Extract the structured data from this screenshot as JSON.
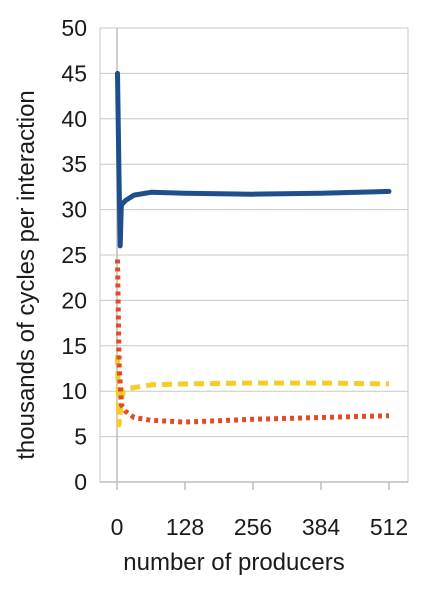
{
  "chart_data": {
    "type": "line",
    "title": "",
    "xlabel": "number of producers",
    "ylabel": "thousands of cycles per interaction",
    "xlim": [
      0,
      512
    ],
    "ylim": [
      0,
      50
    ],
    "x_ticks": [
      0,
      128,
      256,
      384,
      512
    ],
    "y_ticks": [
      0,
      5,
      10,
      15,
      20,
      25,
      30,
      35,
      40,
      45,
      50
    ],
    "grid": true,
    "legend": "none",
    "series": [
      {
        "style": "solid",
        "color": "#1f4e8c",
        "x": [
          1,
          4,
          6,
          8,
          16,
          32,
          64,
          128,
          256,
          384,
          512
        ],
        "y": [
          45,
          33,
          26,
          30.5,
          31,
          31.6,
          31.9,
          31.8,
          31.7,
          31.8,
          32
        ]
      },
      {
        "style": "dashed",
        "color": "#f5cc2a",
        "x": [
          1,
          2,
          4,
          8,
          12,
          16,
          32,
          64,
          128,
          256,
          384,
          512
        ],
        "y": [
          14,
          10.5,
          6.3,
          9,
          10.1,
          10.2,
          10.4,
          10.7,
          10.8,
          10.9,
          10.9,
          10.8
        ]
      },
      {
        "style": "dotted",
        "color": "#e34a27",
        "x": [
          1,
          2,
          4,
          8,
          16,
          32,
          64,
          128,
          256,
          384,
          512
        ],
        "y": [
          24.5,
          20,
          13,
          8.5,
          7.8,
          7.1,
          6.8,
          6.6,
          6.9,
          7.1,
          7.3
        ]
      }
    ]
  }
}
